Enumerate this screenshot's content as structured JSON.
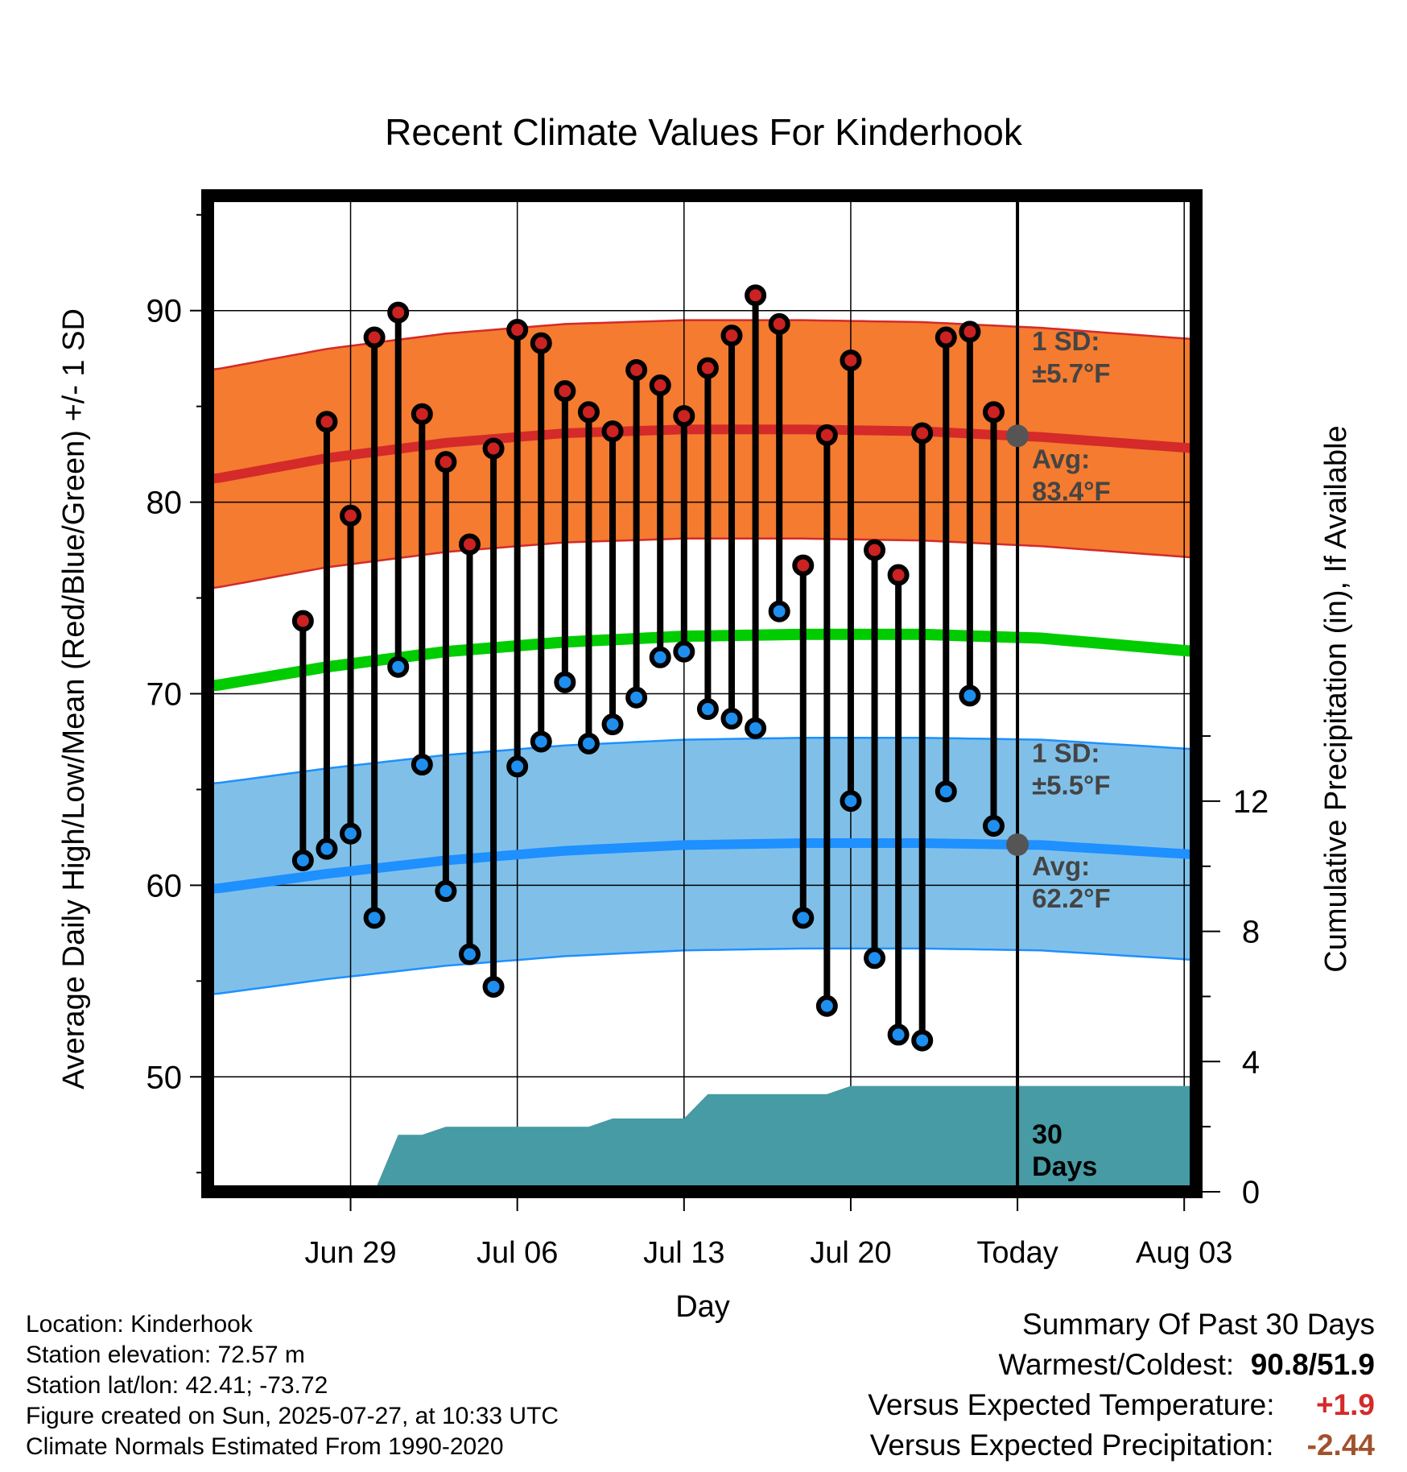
{
  "chart_data": {
    "type": "climate_range",
    "title": "Recent Climate Values For Kinderhook",
    "xlabel": "Day",
    "ylabel_left": "Average Daily High/Low/Mean (Red/Blue/Green) +/- 1 SD",
    "ylabel_right": "Cumulative Precipitation (in), If Available",
    "ylim_left": [
      44,
      96
    ],
    "ylim_right": [
      0,
      30.6
    ],
    "yticks_left": [
      50,
      60,
      70,
      80,
      90
    ],
    "yticks_right": [
      0,
      4,
      8,
      12
    ],
    "x_range_days": [
      -5.0,
      36.5
    ],
    "x_ticks": [
      {
        "day": 1,
        "label": "Jun 29"
      },
      {
        "day": 8,
        "label": "Jul 06"
      },
      {
        "day": 15,
        "label": "Jul 13"
      },
      {
        "day": 22,
        "label": "Jul 20"
      },
      {
        "day": 29,
        "label": "Today"
      },
      {
        "day": 36,
        "label": "Aug 03"
      }
    ],
    "today_day": 29,
    "today_label": "30 Days",
    "observations": {
      "day": [
        -1,
        0,
        1,
        2,
        3,
        4,
        5,
        6,
        7,
        8,
        9,
        10,
        11,
        12,
        13,
        14,
        15,
        16,
        17,
        18,
        19,
        20,
        21,
        22,
        23,
        24,
        25,
        26,
        27,
        28
      ],
      "high": [
        73.8,
        84.2,
        79.3,
        88.6,
        89.9,
        84.6,
        82.1,
        77.8,
        82.8,
        89.0,
        88.3,
        85.8,
        84.7,
        83.7,
        86.9,
        86.1,
        84.5,
        87.0,
        88.7,
        90.8,
        89.3,
        76.7,
        83.5,
        87.4,
        77.5,
        76.2,
        83.6,
        88.6,
        88.9,
        84.7
      ],
      "low": [
        61.3,
        61.9,
        62.7,
        58.3,
        71.4,
        66.3,
        59.7,
        56.4,
        54.7,
        66.2,
        67.5,
        70.6,
        67.4,
        68.4,
        69.8,
        71.9,
        72.2,
        69.2,
        68.7,
        68.2,
        74.3,
        58.3,
        53.7,
        64.4,
        56.2,
        52.2,
        51.9,
        64.9,
        69.9,
        63.1
      ]
    },
    "normals": {
      "day": [
        -4.8,
        0,
        5,
        10,
        15,
        20,
        25,
        30,
        36.5
      ],
      "high_avg": [
        81.2,
        82.3,
        83.1,
        83.6,
        83.8,
        83.8,
        83.7,
        83.4,
        82.8
      ],
      "high_sd": 5.7,
      "low_avg": [
        59.8,
        60.6,
        61.3,
        61.8,
        62.1,
        62.2,
        62.2,
        62.1,
        61.6
      ],
      "low_sd": 5.5,
      "mean_avg": [
        70.4,
        71.4,
        72.2,
        72.7,
        73.0,
        73.1,
        73.1,
        72.9,
        72.2
      ]
    },
    "precipitation_cumulative": {
      "day": [
        -5.0,
        2.0,
        3.0,
        4.0,
        5.0,
        6.0,
        7.0,
        8.0,
        9.0,
        10.0,
        11.0,
        12.0,
        13.0,
        14.0,
        15.0,
        16.0,
        17.0,
        18.0,
        19.0,
        20.0,
        21.0,
        22.0,
        23.0,
        29.0,
        36.5
      ],
      "value": [
        0,
        0,
        1.75,
        1.75,
        2.0,
        2.0,
        2.0,
        2.0,
        2.0,
        2.0,
        2.0,
        2.25,
        2.25,
        2.25,
        2.25,
        3.0,
        3.0,
        3.0,
        3.0,
        3.0,
        3.0,
        3.25,
        3.25,
        3.25,
        3.25
      ]
    },
    "annotations": {
      "high_sd_title": "1 SD:",
      "high_sd_value": "±5.7°F",
      "high_avg_title": "Avg:",
      "high_avg_value": "83.4°F",
      "low_sd_title": "1 SD:",
      "low_sd_value": "±5.5°F",
      "low_avg_title": "Avg:",
      "low_avg_value": "62.2°F"
    },
    "colors": {
      "high_band": "#f47b2f",
      "high_line": "#d42a2a",
      "low_band": "#80c0e8",
      "low_line": "#1e90ff",
      "mean_line": "#00cc00",
      "precip_fill": "#469ba4",
      "high_marker": "#cc2222",
      "low_marker": "#1e8fef",
      "annotation_text": "#444444"
    }
  },
  "info": {
    "location": "Location: Kinderhook",
    "elevation": "Station elevation: 72.57 m",
    "latlon": "Station lat/lon: 42.41; -73.72",
    "created": "Figure created on Sun, 2025-07-27, at 10:33 UTC",
    "normals": "Climate Normals Estimated From 1990-2020"
  },
  "summary": {
    "title": "Summary Of Past 30 Days",
    "warm_cold_label": "Warmest/Coldest:",
    "warm_cold_value": "90.8/51.9",
    "temp_label": "Versus Expected Temperature:",
    "temp_value": "+1.9",
    "temp_color": "#d42a2a",
    "precip_label": "Versus Expected Precipitation:",
    "precip_value": "-2.44",
    "precip_color": "#a0522d"
  }
}
